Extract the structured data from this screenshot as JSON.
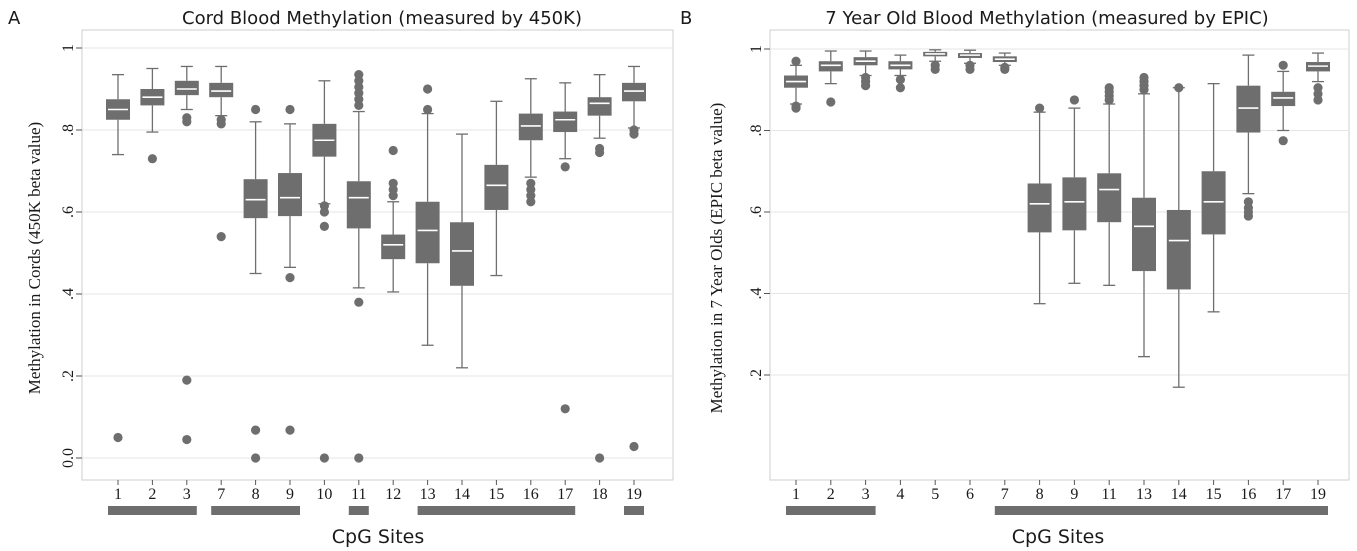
{
  "figure": {
    "box_color": "#6e6e6e",
    "median_color": "#ffffff",
    "grid_color": "#e6e6e6",
    "axis_color": "#555555"
  },
  "chart_data": [
    {
      "type": "box",
      "panel_label": "A",
      "title": "Cord Blood Methylation (measured by 450K)",
      "xlabel": "CpG Sites",
      "ylabel": "Methylation in Cords (450K beta value)",
      "ylim": [
        -0.02,
        1.02
      ],
      "yticks": [
        0.0,
        0.2,
        0.4,
        0.6,
        0.8,
        1.0
      ],
      "ytick_labels": [
        "0.0",
        ".2",
        ".4",
        ".6",
        ".8",
        "1"
      ],
      "grid": true,
      "categories": [
        "1",
        "2",
        "3",
        "7",
        "8",
        "9",
        "10",
        "11",
        "12",
        "13",
        "14",
        "15",
        "16",
        "17",
        "18",
        "19"
      ],
      "boxes": [
        {
          "site": "1",
          "whisker_low": 0.74,
          "q1": 0.825,
          "median": 0.85,
          "q3": 0.875,
          "whisker_high": 0.935,
          "outliers": [
            0.05
          ]
        },
        {
          "site": "2",
          "whisker_low": 0.795,
          "q1": 0.86,
          "median": 0.88,
          "q3": 0.9,
          "whisker_high": 0.95,
          "outliers": [
            0.73
          ]
        },
        {
          "site": "3",
          "whisker_low": 0.85,
          "q1": 0.885,
          "median": 0.9,
          "q3": 0.92,
          "whisker_high": 0.955,
          "outliers": [
            0.19,
            0.045,
            0.82,
            0.83
          ]
        },
        {
          "site": "7",
          "whisker_low": 0.835,
          "q1": 0.88,
          "median": 0.895,
          "q3": 0.915,
          "whisker_high": 0.955,
          "outliers": [
            0.54,
            0.815,
            0.825
          ]
        },
        {
          "site": "8",
          "whisker_low": 0.45,
          "q1": 0.585,
          "median": 0.63,
          "q3": 0.68,
          "whisker_high": 0.82,
          "outliers": [
            0.0,
            0.068,
            0.85
          ]
        },
        {
          "site": "9",
          "whisker_low": 0.465,
          "q1": 0.59,
          "median": 0.635,
          "q3": 0.695,
          "whisker_high": 0.815,
          "outliers": [
            0.44,
            0.068,
            0.85
          ]
        },
        {
          "site": "10",
          "whisker_low": 0.62,
          "q1": 0.735,
          "median": 0.775,
          "q3": 0.815,
          "whisker_high": 0.92,
          "outliers": [
            0.0,
            0.565,
            0.6,
            0.615
          ]
        },
        {
          "site": "11",
          "whisker_low": 0.415,
          "q1": 0.56,
          "median": 0.635,
          "q3": 0.675,
          "whisker_high": 0.845,
          "outliers": [
            0.0,
            0.38,
            0.86,
            0.875,
            0.89,
            0.905,
            0.92,
            0.935
          ]
        },
        {
          "site": "12",
          "whisker_low": 0.405,
          "q1": 0.485,
          "median": 0.52,
          "q3": 0.545,
          "whisker_high": 0.625,
          "outliers": [
            0.64,
            0.655,
            0.67,
            0.75
          ]
        },
        {
          "site": "13",
          "whisker_low": 0.275,
          "q1": 0.475,
          "median": 0.555,
          "q3": 0.625,
          "whisker_high": 0.84,
          "outliers": [
            0.85,
            0.9
          ]
        },
        {
          "site": "14",
          "whisker_low": 0.22,
          "q1": 0.42,
          "median": 0.505,
          "q3": 0.575,
          "whisker_high": 0.79,
          "outliers": []
        },
        {
          "site": "15",
          "whisker_low": 0.445,
          "q1": 0.605,
          "median": 0.665,
          "q3": 0.715,
          "whisker_high": 0.87,
          "outliers": []
        },
        {
          "site": "16",
          "whisker_low": 0.685,
          "q1": 0.775,
          "median": 0.81,
          "q3": 0.84,
          "whisker_high": 0.925,
          "outliers": [
            0.625,
            0.64,
            0.655,
            0.67
          ]
        },
        {
          "site": "17",
          "whisker_low": 0.73,
          "q1": 0.795,
          "median": 0.825,
          "q3": 0.845,
          "whisker_high": 0.915,
          "outliers": [
            0.12,
            0.71
          ]
        },
        {
          "site": "18",
          "whisker_low": 0.78,
          "q1": 0.835,
          "median": 0.865,
          "q3": 0.88,
          "whisker_high": 0.935,
          "outliers": [
            0.0,
            0.745,
            0.755
          ]
        },
        {
          "site": "19",
          "whisker_low": 0.805,
          "q1": 0.87,
          "median": 0.895,
          "q3": 0.915,
          "whisker_high": 0.955,
          "outliers": [
            0.028,
            0.79,
            0.8
          ]
        }
      ],
      "group_bars": [
        {
          "from": "1",
          "to": "3"
        },
        {
          "from": "7",
          "to": "9"
        },
        {
          "from": "11",
          "to": "11"
        },
        {
          "from": "13",
          "to": "17"
        },
        {
          "from": "19",
          "to": "19"
        }
      ]
    },
    {
      "type": "box",
      "panel_label": "B",
      "title": "7 Year Old Blood Methylation (measured by EPIC)",
      "xlabel": "CpG Sites",
      "ylabel": "Methylation in 7 Year Olds (EPIC beta value)",
      "ylim": [
        0.0,
        1.02
      ],
      "yticks": [
        0.2,
        0.4,
        0.6,
        0.8,
        1.0
      ],
      "ytick_labels": [
        ".2",
        ".4",
        ".6",
        ".8",
        "1"
      ],
      "grid": true,
      "categories": [
        "1",
        "2",
        "3",
        "4",
        "5",
        "6",
        "7",
        "8",
        "9",
        "11",
        "13",
        "14",
        "15",
        "16",
        "17",
        "19"
      ],
      "boxes": [
        {
          "site": "1",
          "whisker_low": 0.865,
          "q1": 0.905,
          "median": 0.92,
          "q3": 0.935,
          "whisker_high": 0.96,
          "outliers": [
            0.855,
            0.86,
            0.97
          ]
        },
        {
          "site": "2",
          "whisker_low": 0.915,
          "q1": 0.945,
          "median": 0.96,
          "q3": 0.97,
          "whisker_high": 0.995,
          "outliers": [
            0.87
          ]
        },
        {
          "site": "3",
          "whisker_low": 0.935,
          "q1": 0.96,
          "median": 0.97,
          "q3": 0.98,
          "whisker_high": 0.995,
          "outliers": [
            0.91,
            0.92,
            0.93
          ]
        },
        {
          "site": "4",
          "whisker_low": 0.935,
          "q1": 0.95,
          "median": 0.96,
          "q3": 0.97,
          "whisker_high": 0.985,
          "outliers": [
            0.905,
            0.925
          ]
        },
        {
          "site": "5",
          "whisker_low": 0.97,
          "q1": 0.982,
          "median": 0.988,
          "q3": 0.993,
          "whisker_high": 0.998,
          "outliers": [
            0.95,
            0.96
          ]
        },
        {
          "site": "6",
          "whisker_low": 0.965,
          "q1": 0.978,
          "median": 0.985,
          "q3": 0.99,
          "whisker_high": 0.997,
          "outliers": [
            0.95,
            0.96
          ]
        },
        {
          "site": "7",
          "whisker_low": 0.96,
          "q1": 0.968,
          "median": 0.975,
          "q3": 0.982,
          "whisker_high": 0.99,
          "outliers": [
            0.95,
            0.955
          ]
        },
        {
          "site": "8",
          "whisker_low": 0.375,
          "q1": 0.55,
          "median": 0.62,
          "q3": 0.67,
          "whisker_high": 0.845,
          "outliers": [
            0.855
          ]
        },
        {
          "site": "9",
          "whisker_low": 0.425,
          "q1": 0.555,
          "median": 0.625,
          "q3": 0.685,
          "whisker_high": 0.855,
          "outliers": [
            0.875
          ]
        },
        {
          "site": "11",
          "whisker_low": 0.42,
          "q1": 0.575,
          "median": 0.655,
          "q3": 0.695,
          "whisker_high": 0.865,
          "outliers": [
            0.875,
            0.885,
            0.895,
            0.905
          ]
        },
        {
          "site": "13",
          "whisker_low": 0.245,
          "q1": 0.455,
          "median": 0.565,
          "q3": 0.635,
          "whisker_high": 0.89,
          "outliers": [
            0.9,
            0.91,
            0.92,
            0.93
          ]
        },
        {
          "site": "14",
          "whisker_low": 0.17,
          "q1": 0.41,
          "median": 0.53,
          "q3": 0.605,
          "whisker_high": 0.905,
          "outliers": [
            0.905
          ]
        },
        {
          "site": "15",
          "whisker_low": 0.355,
          "q1": 0.545,
          "median": 0.625,
          "q3": 0.7,
          "whisker_high": 0.915,
          "outliers": []
        },
        {
          "site": "16",
          "whisker_low": 0.645,
          "q1": 0.795,
          "median": 0.855,
          "q3": 0.91,
          "whisker_high": 0.985,
          "outliers": [
            0.59,
            0.6,
            0.61,
            0.625
          ]
        },
        {
          "site": "17",
          "whisker_low": 0.8,
          "q1": 0.86,
          "median": 0.88,
          "q3": 0.895,
          "whisker_high": 0.945,
          "outliers": [
            0.775,
            0.96
          ]
        },
        {
          "site": "19",
          "whisker_low": 0.92,
          "q1": 0.945,
          "median": 0.958,
          "q3": 0.968,
          "whisker_high": 0.99,
          "outliers": [
            0.875,
            0.89,
            0.905
          ]
        }
      ],
      "group_bars": [
        {
          "from": "1",
          "to": "3"
        },
        {
          "from": "7",
          "to": "19"
        }
      ]
    }
  ]
}
